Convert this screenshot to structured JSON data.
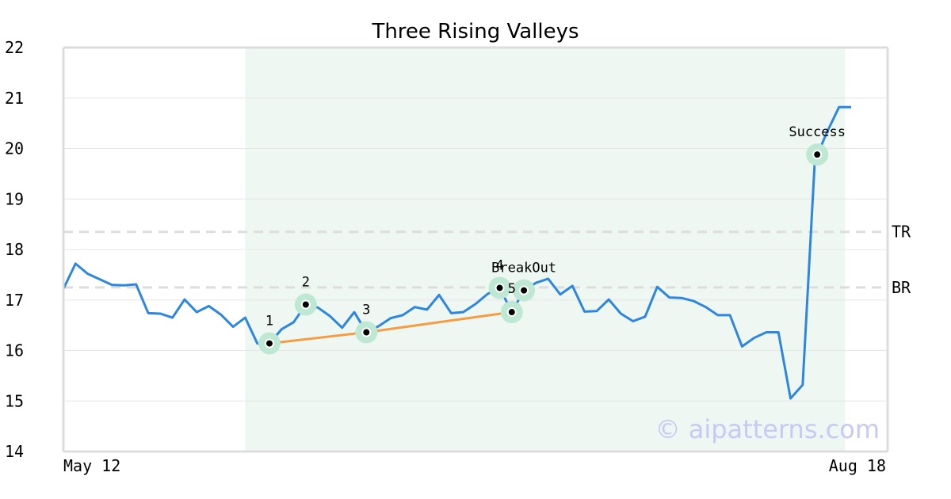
{
  "chart_data": {
    "type": "line",
    "title": "Three Rising Valleys",
    "xlabel": "",
    "ylabel": "",
    "ylim": [
      14,
      22
    ],
    "grid": true,
    "y_ticks": [
      "14",
      "15",
      "16",
      "17",
      "18",
      "19",
      "20",
      "21",
      "22"
    ],
    "x_tick_labels": [
      {
        "label": "May 12",
        "index": 0
      },
      {
        "label": "Aug 18",
        "index": 65
      }
    ],
    "series": [
      {
        "color": "#2e86de",
        "values": [
          17.22,
          17.72,
          17.52,
          17.41,
          17.3,
          17.29,
          17.31,
          16.74,
          16.73,
          16.65,
          17.01,
          16.76,
          16.88,
          16.71,
          16.47,
          16.65,
          16.14,
          16.14,
          16.42,
          16.56,
          16.91,
          16.85,
          16.68,
          16.45,
          16.76,
          16.36,
          16.48,
          16.64,
          16.7,
          16.86,
          16.81,
          17.1,
          16.74,
          16.76,
          16.92,
          17.12,
          17.24,
          16.76,
          17.19,
          17.34,
          17.42,
          17.11,
          17.28,
          16.77,
          16.78,
          17.01,
          16.73,
          16.58,
          16.67,
          17.26,
          17.05,
          17.04,
          16.98,
          16.86,
          16.7,
          16.7,
          16.08,
          16.25,
          16.36,
          16.36,
          15.05,
          15.32,
          19.75,
          20.32,
          20.82,
          20.82
        ]
      },
      {
        "color": "#f59d45",
        "x_index": [
          17,
          25,
          37
        ],
        "values": [
          16.14,
          16.36,
          16.76
        ]
      }
    ],
    "reference_lines": [
      {
        "label": "TR",
        "y": 18.35,
        "color": "#dddddd"
      },
      {
        "label": "BR",
        "y": 17.25,
        "color": "#dddddd"
      }
    ],
    "pattern_region": {
      "x_start_index": 15,
      "x_end_index": 64.5,
      "color": "#eef7f2"
    },
    "annotations": [
      {
        "label": "1",
        "x_index": 17,
        "y": 16.14
      },
      {
        "label": "2",
        "x_index": 20,
        "y": 16.91
      },
      {
        "label": "3",
        "x_index": 25,
        "y": 16.36
      },
      {
        "label": "4",
        "x_index": 36,
        "y": 17.24
      },
      {
        "label": "5",
        "x_index": 37,
        "y": 16.76
      },
      {
        "label": "BreakOut",
        "x_index": 38,
        "y": 17.19
      },
      {
        "label": "Success",
        "x_index": 62.2,
        "y": 19.88
      }
    ],
    "marker_color": "#bfe8d4",
    "watermark": "© aipatterns.com"
  }
}
